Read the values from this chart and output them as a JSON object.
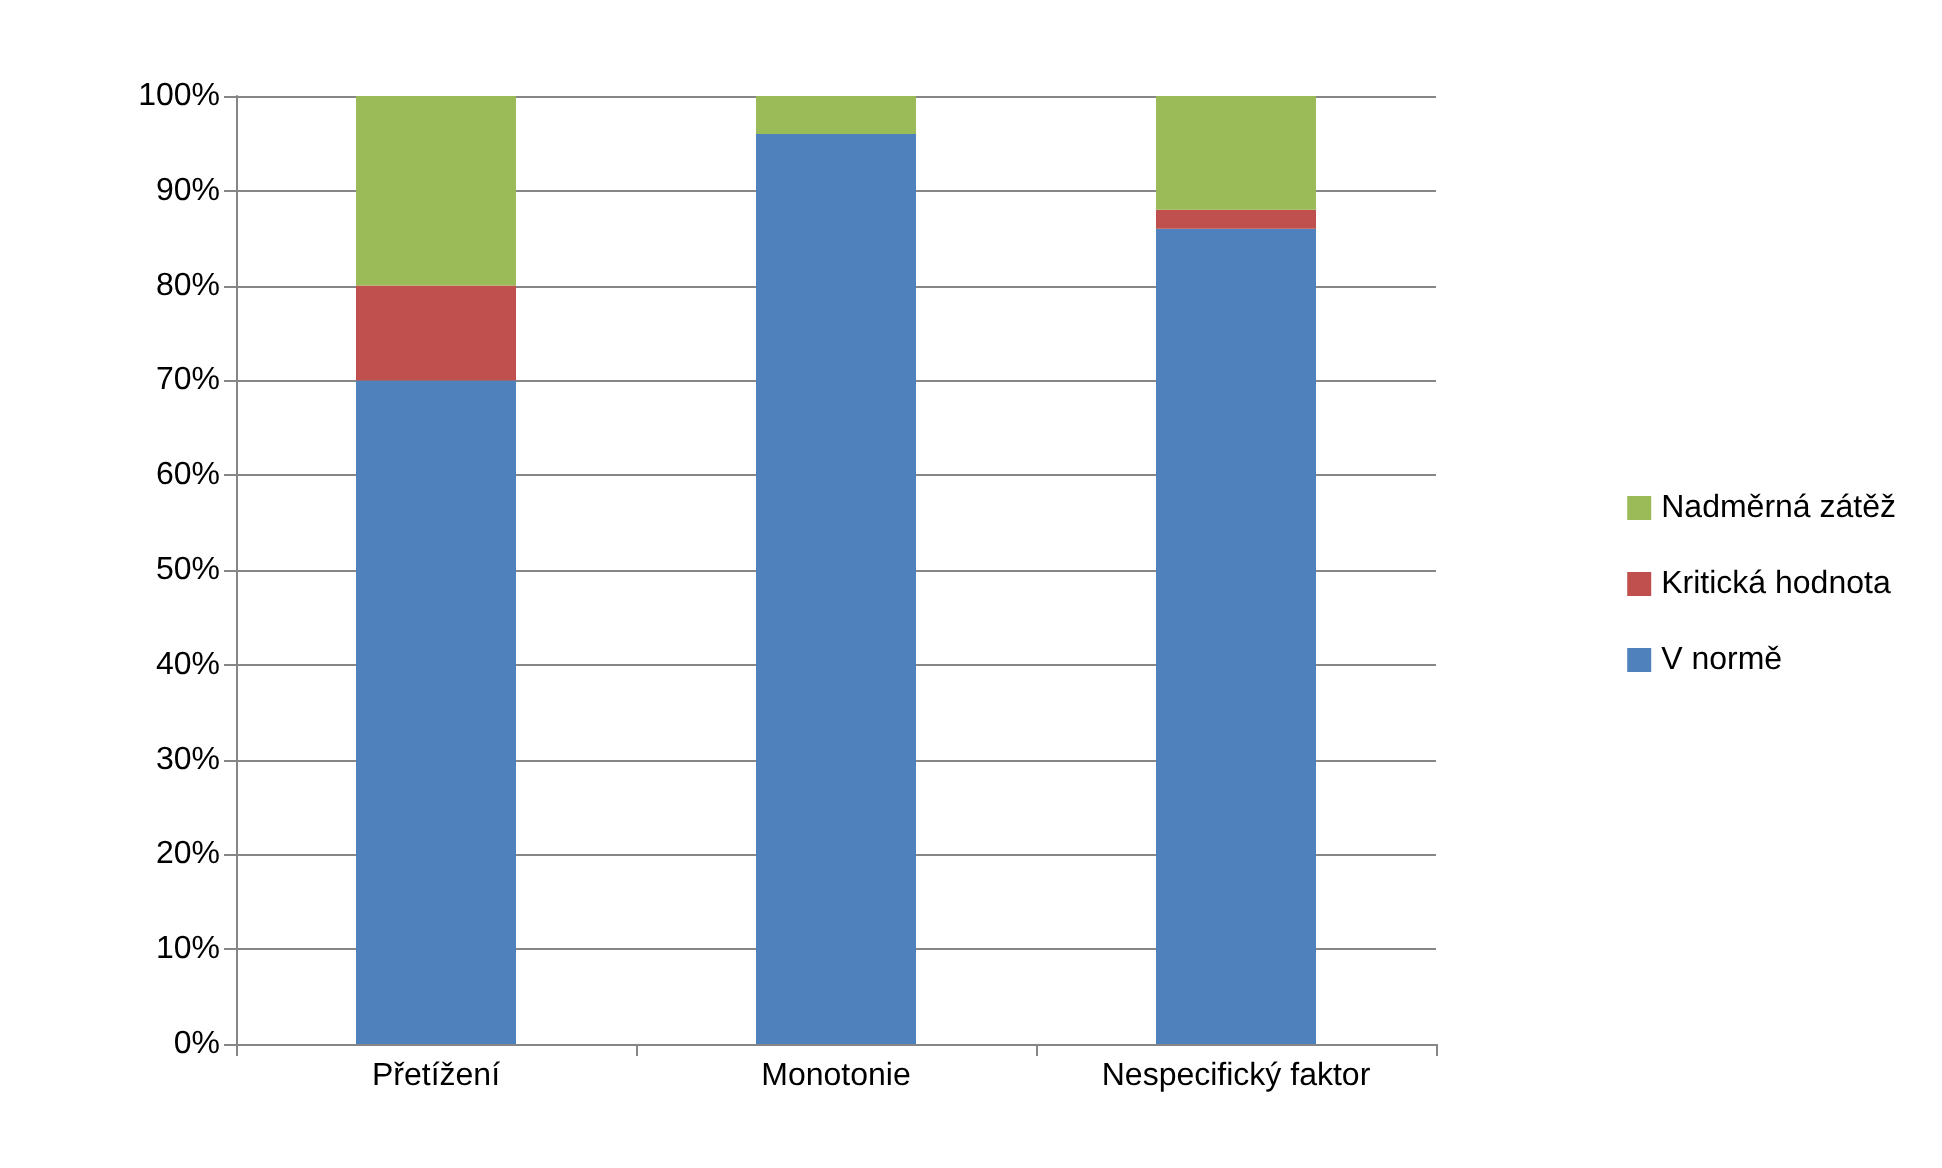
{
  "chart_data": {
    "type": "bar",
    "stacked": true,
    "categories": [
      "Přetížení",
      "Monotonie",
      "Nespecifický faktor"
    ],
    "series": [
      {
        "name": "V normě",
        "color": "#4f81bd",
        "values": [
          70,
          96,
          86
        ]
      },
      {
        "name": "Kritická hodnota",
        "color": "#c0504d",
        "values": [
          10,
          0,
          2
        ]
      },
      {
        "name": "Nadměrná zátěž",
        "color": "#9bbb59",
        "values": [
          20,
          4,
          12
        ]
      }
    ],
    "ylim": [
      0,
      100
    ],
    "yticks": [
      {
        "value": 0,
        "label": "0%"
      },
      {
        "value": 10,
        "label": "10%"
      },
      {
        "value": 20,
        "label": "20%"
      },
      {
        "value": 30,
        "label": "30%"
      },
      {
        "value": 40,
        "label": "40%"
      },
      {
        "value": 50,
        "label": "50%"
      },
      {
        "value": 60,
        "label": "60%"
      },
      {
        "value": 70,
        "label": "70%"
      },
      {
        "value": 80,
        "label": "80%"
      },
      {
        "value": 90,
        "label": "90%"
      },
      {
        "value": 100,
        "label": "100%"
      }
    ],
    "grid": "y",
    "legend": "right"
  }
}
